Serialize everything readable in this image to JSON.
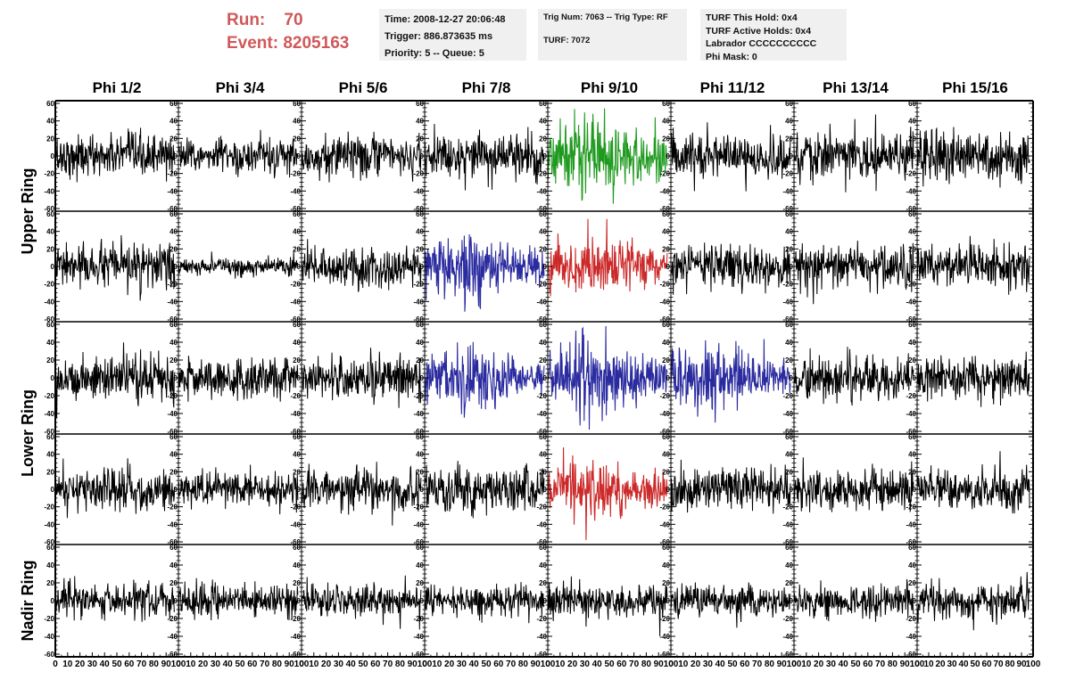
{
  "header": {
    "run_label": "Run:",
    "run_value": "70",
    "event_label": "Event:",
    "event_value": "8205163",
    "time": "Time: 2008-12-27 20:06:48",
    "trigger": "Trigger: 886.873635 ms",
    "priority": "Priority: 5 -- Queue: 5",
    "trig_num": "Trig Num: 7063 -- Trig Type: RF",
    "turf": "TURF: 7072",
    "turf_this_hold": "TURF This Hold: 0x4",
    "turf_active_holds": "TURF Active Holds: 0x4",
    "labrador": "Labrador CCCCCCCCCC",
    "phi_mask": "Phi Mask: 0"
  },
  "colors": {
    "normal": "#000000",
    "green": "#1f9a1f",
    "blue": "#2b2ba0",
    "red": "#cc2a2a",
    "title": "#d0585a"
  },
  "chart_data": {
    "type": "line",
    "title": "",
    "columns": [
      "Phi 1/2",
      "Phi 3/4",
      "Phi 5/6",
      "Phi 7/8",
      "Phi 9/10",
      "Phi 11/12",
      "Phi 13/14",
      "Phi 15/16"
    ],
    "ring_labels": [
      {
        "label": "Upper Ring",
        "rows": [
          0,
          1
        ]
      },
      {
        "label": "Lower Ring",
        "rows": [
          2,
          3
        ]
      },
      {
        "label": "Nadir Ring",
        "rows": [
          4
        ]
      }
    ],
    "rows": 5,
    "xlim": [
      0,
      100
    ],
    "ylim": [
      -60,
      60
    ],
    "x_ticks": [
      0,
      10,
      20,
      30,
      40,
      50,
      60,
      70,
      80,
      90,
      100
    ],
    "x_tick_labels": [
      "0",
      "10",
      "20",
      "30",
      "40",
      "50",
      "60",
      "70",
      "80",
      "90",
      "100"
    ],
    "y_ticks": [
      -60,
      -40,
      -20,
      0,
      20,
      40,
      60
    ],
    "y_tick_labels": [
      "-60",
      "-40",
      "-20",
      "0",
      "20",
      "40",
      "60"
    ],
    "waveform_x_range": [
      0,
      97
    ],
    "highlighted": [
      {
        "row": 0,
        "col": 4,
        "color": "green"
      },
      {
        "row": 1,
        "col": 3,
        "color": "blue"
      },
      {
        "row": 1,
        "col": 4,
        "color": "red"
      },
      {
        "row": 2,
        "col": 3,
        "color": "blue"
      },
      {
        "row": 2,
        "col": 4,
        "color": "blue"
      },
      {
        "row": 2,
        "col": 5,
        "color": "blue"
      },
      {
        "row": 3,
        "col": 4,
        "color": "red"
      }
    ],
    "amplitude_rms": [
      [
        12,
        10,
        12,
        13,
        22,
        12,
        14,
        14
      ],
      [
        12,
        5,
        12,
        18,
        16,
        12,
        12,
        13
      ],
      [
        13,
        11,
        13,
        17,
        20,
        17,
        12,
        11
      ],
      [
        12,
        10,
        12,
        13,
        15,
        12,
        13,
        12
      ],
      [
        10,
        9,
        9,
        9,
        10,
        9,
        9,
        11
      ]
    ]
  }
}
